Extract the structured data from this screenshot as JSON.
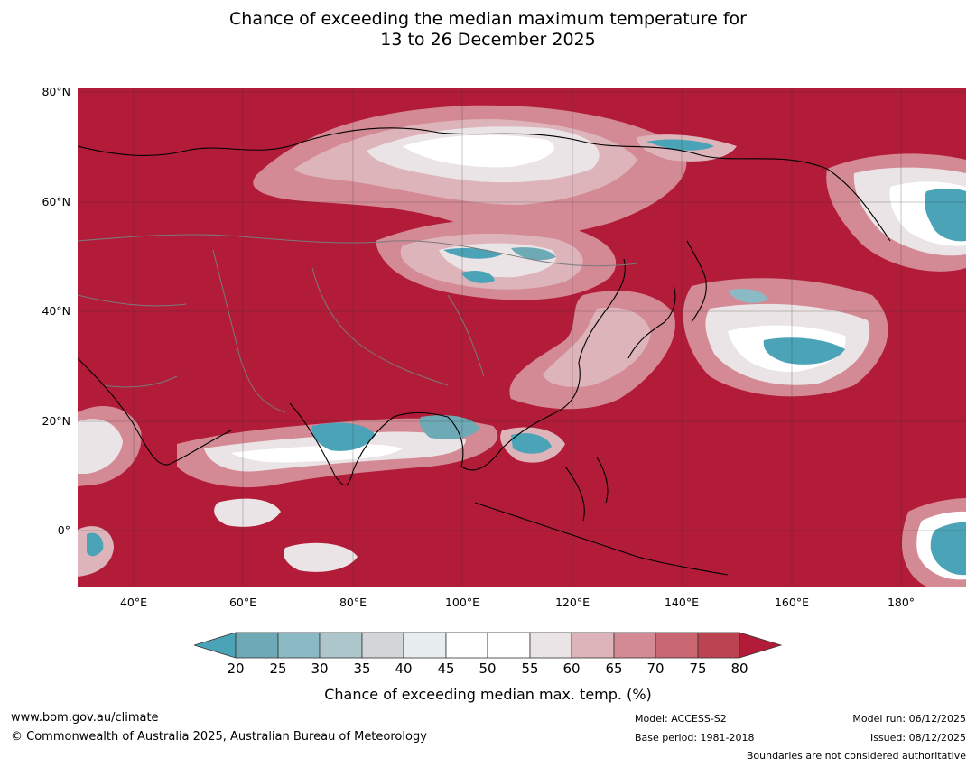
{
  "title": {
    "line1": "Chance of exceeding the median maximum temperature for",
    "line2": "13 to 26 December 2025"
  },
  "map": {
    "background_color": "#b21c39",
    "lat_labels": [
      "80°N",
      "60°N",
      "40°N",
      "20°N",
      "0°"
    ],
    "lon_labels": [
      "40°E",
      "60°E",
      "80°E",
      "100°E",
      "120°E",
      "140°E",
      "160°E",
      "180°"
    ]
  },
  "colorbar": {
    "ticks": [
      "20",
      "25",
      "30",
      "35",
      "40",
      "45",
      "50",
      "55",
      "60",
      "65",
      "70",
      "75",
      "80"
    ],
    "colors": [
      "#4aa3b6",
      "#6eaab6",
      "#8bb9c4",
      "#acc6cc",
      "#d2d6d9",
      "#e8eef0",
      "#ffffff",
      "#ffffff",
      "#ebe4e6",
      "#deb4bb",
      "#d48a95",
      "#c86672",
      "#bc4350",
      "#b21c39"
    ],
    "label": "Chance of exceeding median max. temp. (%)"
  },
  "footer": {
    "website": "www.bom.gov.au/climate",
    "copyright": "© Commonwealth of Australia 2025, Australian Bureau of Meteorology",
    "model": "Model: ACCESS-S2",
    "base_period": "Base period: 1981-2018",
    "model_run": "Model run: 06/12/2025",
    "issued": "Issued: 08/12/2025",
    "boundaries_note": "Boundaries are not considered authoritative"
  }
}
